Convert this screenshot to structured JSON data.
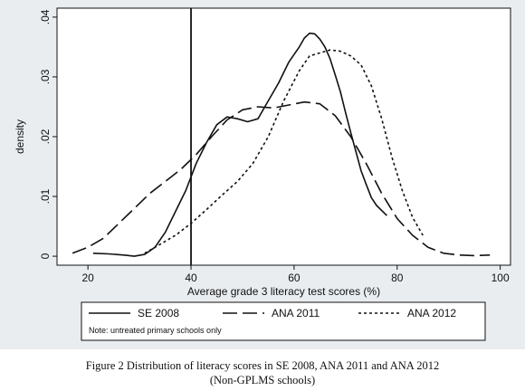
{
  "chart_data": {
    "type": "line",
    "xlabel": "Average grade 3 literacy test scores (%)",
    "ylabel": "density",
    "xlim": [
      14,
      102
    ],
    "ylim": [
      -0.0015,
      0.0415
    ],
    "x_ticks": [
      20,
      40,
      60,
      80,
      100
    ],
    "y_ticks": [
      0,
      0.01,
      0.02,
      0.03,
      0.04
    ],
    "x_tick_labels": [
      "20",
      "40",
      "60",
      "80",
      "100"
    ],
    "y_tick_labels": [
      "0",
      ".01",
      ".02",
      ".03",
      ".04"
    ],
    "grid": false,
    "reference_line_x": 40,
    "legend_position": "bottom",
    "legend_note": "Note: untreated primary schools only",
    "series": [
      {
        "name": "SE 2008",
        "style": "solid",
        "x": [
          21,
          24,
          27,
          29,
          31,
          33,
          35,
          37,
          39,
          41,
          43,
          45,
          47,
          49,
          51,
          53,
          55,
          57,
          59,
          61,
          62,
          63,
          64,
          65,
          66,
          67,
          68,
          69,
          70,
          71,
          72,
          73,
          74,
          75,
          76,
          78
        ],
        "y": [
          0.0005,
          0.0004,
          0.0002,
          0.0,
          0.0003,
          0.0015,
          0.004,
          0.0075,
          0.011,
          0.0155,
          0.019,
          0.022,
          0.0233,
          0.023,
          0.0225,
          0.023,
          0.026,
          0.029,
          0.0325,
          0.035,
          0.0365,
          0.0373,
          0.0372,
          0.0363,
          0.035,
          0.033,
          0.0303,
          0.0275,
          0.024,
          0.0207,
          0.0175,
          0.0143,
          0.012,
          0.0098,
          0.0085,
          0.0068
        ]
      },
      {
        "name": "ANA 2011",
        "style": "long-dash",
        "x": [
          17,
          20,
          23,
          26,
          29,
          32,
          35,
          38,
          41,
          44,
          47,
          50,
          53,
          56,
          59,
          62,
          65,
          68,
          71,
          74,
          77,
          80,
          83,
          86,
          89,
          92,
          95,
          98
        ],
        "y": [
          0.0005,
          0.0015,
          0.003,
          0.0055,
          0.008,
          0.0105,
          0.0125,
          0.0145,
          0.017,
          0.02,
          0.0228,
          0.0245,
          0.025,
          0.0248,
          0.0253,
          0.0258,
          0.0255,
          0.0235,
          0.02,
          0.0155,
          0.0105,
          0.0063,
          0.0035,
          0.0015,
          0.0005,
          0.0002,
          0.0001,
          0.0002
        ]
      },
      {
        "name": "ANA 2012",
        "style": "dotted",
        "x": [
          31,
          34,
          37,
          40,
          43,
          46,
          49,
          52,
          55,
          58,
          61,
          63,
          65,
          67,
          69,
          71,
          73,
          75,
          77,
          79,
          81,
          83,
          85
        ],
        "y": [
          0.0005,
          0.002,
          0.0035,
          0.0055,
          0.0078,
          0.0102,
          0.0125,
          0.0155,
          0.02,
          0.026,
          0.031,
          0.0335,
          0.034,
          0.0345,
          0.0343,
          0.0335,
          0.032,
          0.0285,
          0.023,
          0.0165,
          0.011,
          0.0065,
          0.0035
        ]
      }
    ]
  },
  "caption": {
    "line1": "Figure 2  Distribution of literacy scores in SE 2008, ANA 2011 and ANA 2012",
    "line2": "(Non-GPLMS schools)"
  }
}
